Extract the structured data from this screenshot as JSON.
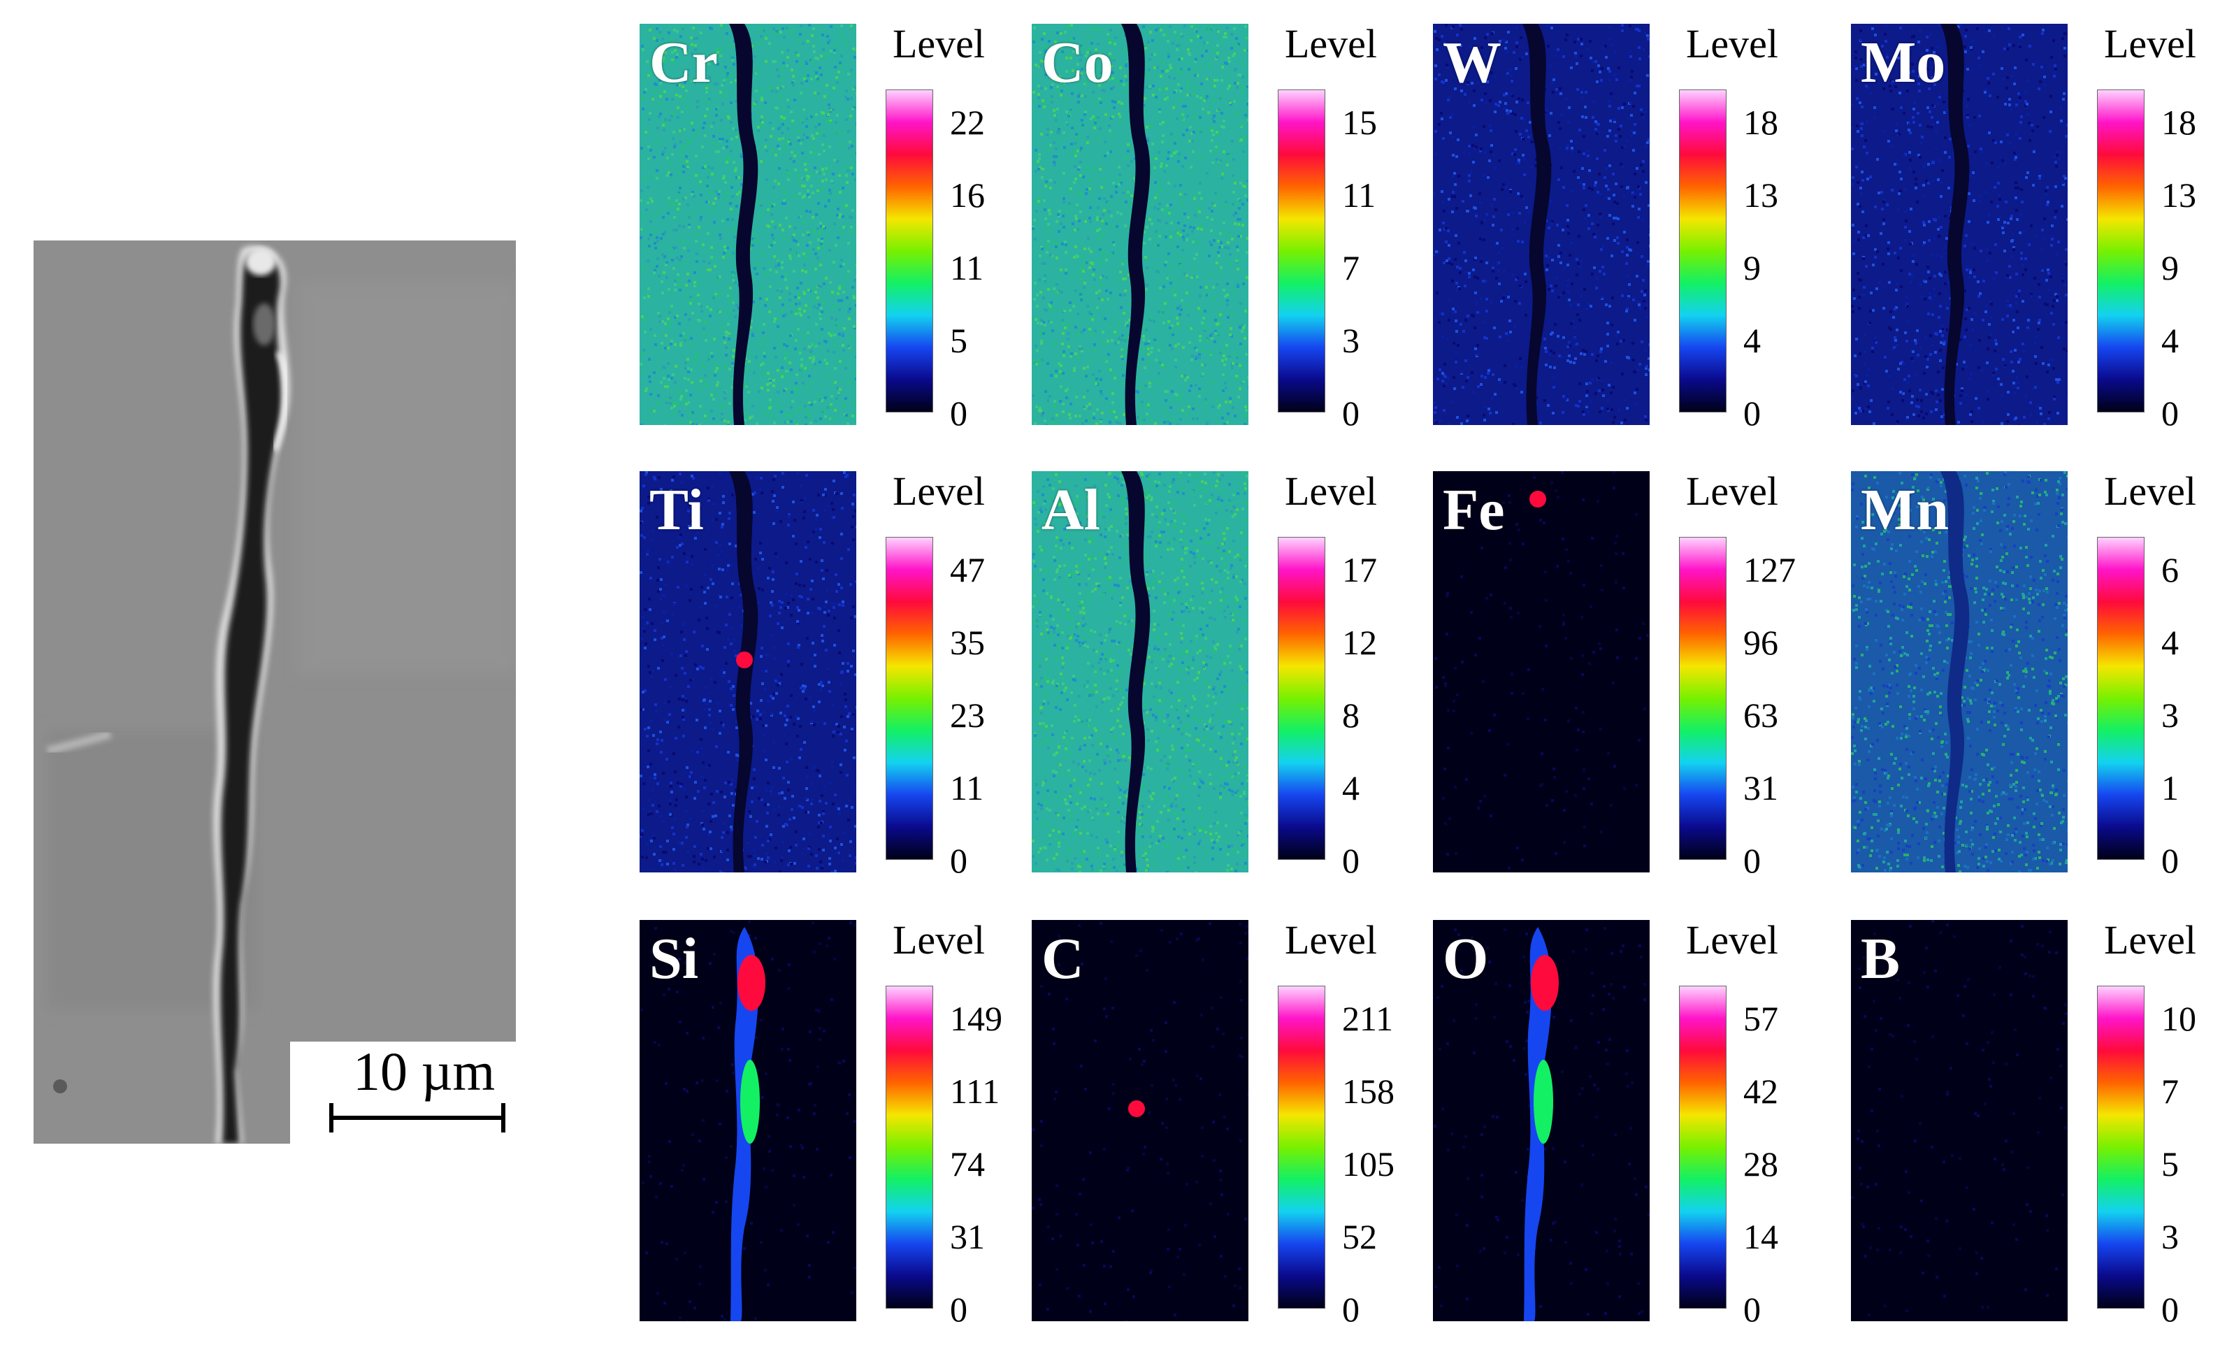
{
  "micrograph": {
    "scale_label": "10 µm"
  },
  "colormap": {
    "stops": [
      "#000018",
      "#0a0a8c",
      "#1646f0",
      "#13d2f0",
      "#13f064",
      "#78f000",
      "#f5e600",
      "#ff6400",
      "#ff0a3c",
      "#ff14c8",
      "#ffd2ff"
    ],
    "background_low": "#0a0a50"
  },
  "panels": [
    {
      "element": "Cr",
      "level_title": "Level",
      "ticks": [
        "22",
        "16",
        "11",
        "5",
        "0"
      ],
      "map_style": "high"
    },
    {
      "element": "Co",
      "level_title": "Level",
      "ticks": [
        "15",
        "11",
        "7",
        "3",
        "0"
      ],
      "map_style": "high"
    },
    {
      "element": "W",
      "level_title": "Level",
      "ticks": [
        "18",
        "13",
        "9",
        "4",
        "0"
      ],
      "map_style": "low"
    },
    {
      "element": "Mo",
      "level_title": "Level",
      "ticks": [
        "18",
        "13",
        "9",
        "4",
        "0"
      ],
      "map_style": "low"
    },
    {
      "element": "Ti",
      "level_title": "Level",
      "ticks": [
        "47",
        "35",
        "23",
        "11",
        "0"
      ],
      "map_style": "low-spots"
    },
    {
      "element": "Al",
      "level_title": "Level",
      "ticks": [
        "17",
        "12",
        "8",
        "4",
        "0"
      ],
      "map_style": "high"
    },
    {
      "element": "Fe",
      "level_title": "Level",
      "ticks": [
        "127",
        "96",
        "63",
        "31",
        "0"
      ],
      "map_style": "dark-spots"
    },
    {
      "element": "Mn",
      "level_title": "Level",
      "ticks": [
        "6",
        "4",
        "3",
        "1",
        "0"
      ],
      "map_style": "mid"
    },
    {
      "element": "Si",
      "level_title": "Level",
      "ticks": [
        "149",
        "111",
        "74",
        "31",
        "0"
      ],
      "map_style": "dark-vein"
    },
    {
      "element": "C",
      "level_title": "Level",
      "ticks": [
        "211",
        "158",
        "105",
        "52",
        "0"
      ],
      "map_style": "dark-spot"
    },
    {
      "element": "O",
      "level_title": "Level",
      "ticks": [
        "57",
        "42",
        "28",
        "14",
        "0"
      ],
      "map_style": "dark-vein"
    },
    {
      "element": "B",
      "level_title": "Level",
      "ticks": [
        "10",
        "7",
        "5",
        "3",
        "0"
      ],
      "map_style": "dark-faint"
    }
  ]
}
